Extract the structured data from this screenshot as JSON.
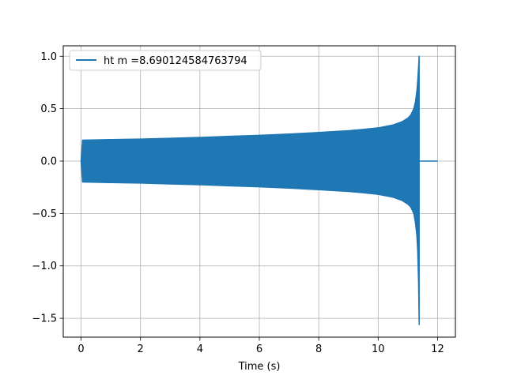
{
  "chart_data": {
    "type": "line",
    "title": "",
    "xlabel": "Time (s)",
    "ylabel": "",
    "xlim": [
      -0.6,
      12.6
    ],
    "ylim": [
      -1.68,
      1.1
    ],
    "x_ticks": [
      0,
      2,
      4,
      6,
      8,
      10,
      12
    ],
    "x_tick_labels": [
      "0",
      "2",
      "4",
      "6",
      "8",
      "10",
      "12"
    ],
    "y_ticks": [
      1.0,
      0.5,
      0.0,
      -0.5,
      -1.0,
      -1.5
    ],
    "y_tick_labels": [
      "1.0",
      "0.5",
      "0.0",
      "−0.5",
      "−1.0",
      "−1.5"
    ],
    "grid": true,
    "legend_position": "upper-left",
    "series": [
      {
        "name": "ht m =8.690124584763794",
        "color": "#1f77b4",
        "envelope": {
          "x": [
            0.0,
            0.05,
            1,
            2,
            3,
            4,
            5,
            6,
            7,
            8,
            9,
            9.5,
            10,
            10.5,
            10.8,
            11.0,
            11.1,
            11.2,
            11.25,
            11.3,
            11.33,
            11.36,
            11.38
          ],
          "upper": [
            0.0,
            0.2,
            0.205,
            0.21,
            0.218,
            0.226,
            0.236,
            0.246,
            0.258,
            0.273,
            0.29,
            0.302,
            0.317,
            0.345,
            0.375,
            0.41,
            0.44,
            0.5,
            0.56,
            0.66,
            0.76,
            0.9,
            1.0
          ],
          "lower": [
            0.0,
            -0.2,
            -0.205,
            -0.21,
            -0.218,
            -0.226,
            -0.236,
            -0.246,
            -0.258,
            -0.273,
            -0.29,
            -0.302,
            -0.317,
            -0.345,
            -0.375,
            -0.41,
            -0.44,
            -0.5,
            -0.58,
            -0.7,
            -0.85,
            -1.15,
            -1.56
          ]
        },
        "ringdown_x": [
          11.38,
          11.45,
          12.0
        ],
        "ringdown_y": [
          0.0,
          0.0,
          0.0
        ]
      }
    ]
  }
}
